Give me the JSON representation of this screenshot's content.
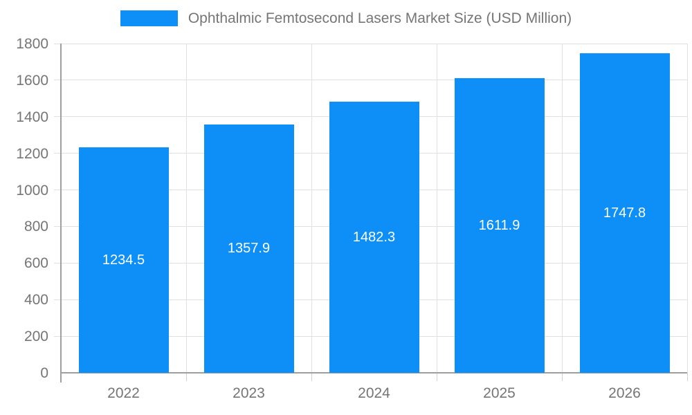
{
  "chart_data": {
    "type": "bar",
    "title": "Ophthalmic Femtosecond Lasers Market Size (USD Million)",
    "categories": [
      "2022",
      "2023",
      "2024",
      "2025",
      "2026"
    ],
    "series": [
      {
        "name": "Ophthalmic Femtosecond Lasers Market Size (USD Million)",
        "values": [
          1234.5,
          1357.9,
          1482.3,
          1611.9,
          1747.8
        ],
        "value_labels": [
          "1234.5",
          "1357.9",
          "1482.3",
          "1611.9",
          "1747.8"
        ]
      }
    ],
    "xlabel": "",
    "ylabel": "",
    "ylim": [
      0,
      1800
    ],
    "y_ticks": [
      0,
      200,
      400,
      600,
      800,
      1000,
      1200,
      1400,
      1600,
      1800
    ],
    "y_tick_labels": [
      "0",
      "200",
      "400",
      "600",
      "800",
      "1000",
      "1200",
      "1400",
      "1600",
      "1800"
    ],
    "grid": true,
    "legend_position": "top-center",
    "bar_labels_inside": true,
    "colors": {
      "bar": "#0d8ff7",
      "bar_label_text": "#ffffff",
      "axis_text": "#757575",
      "axis_line": "#9e9e9e",
      "gridline": "#e0e0e0",
      "bottom_tick": "#d0d0d0",
      "background": "#ffffff"
    }
  }
}
